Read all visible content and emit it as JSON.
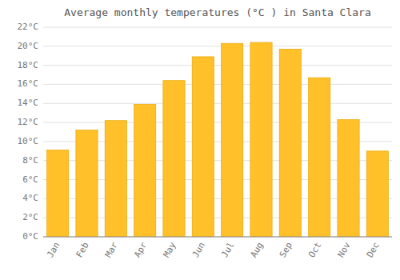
{
  "chart_data": {
    "type": "bar",
    "title": "Average monthly temperatures (°C ) in Santa Clara",
    "categories": [
      "Jan",
      "Feb",
      "Mar",
      "Apr",
      "May",
      "Jun",
      "Jul",
      "Aug",
      "Sep",
      "Oct",
      "Nov",
      "Dec"
    ],
    "values": [
      9.1,
      11.2,
      12.2,
      13.9,
      16.4,
      18.9,
      20.3,
      20.4,
      19.7,
      16.7,
      12.3,
      9.0
    ],
    "color": "#FFC02A",
    "ylim": [
      0,
      22
    ],
    "yticks": [
      {
        "value": 0,
        "label": "0°C"
      },
      {
        "value": 2,
        "label": "2°C"
      },
      {
        "value": 4,
        "label": "4°C"
      },
      {
        "value": 6,
        "label": "6°C"
      },
      {
        "value": 8,
        "label": "8°C"
      },
      {
        "value": 10,
        "label": "10°C"
      },
      {
        "value": 12,
        "label": "12°C"
      },
      {
        "value": 14,
        "label": "14°C"
      },
      {
        "value": 16,
        "label": "16°C"
      },
      {
        "value": 18,
        "label": "18°C"
      },
      {
        "value": 20,
        "label": "20°C"
      },
      {
        "value": 22,
        "label": "22°C"
      }
    ],
    "grid": true
  }
}
